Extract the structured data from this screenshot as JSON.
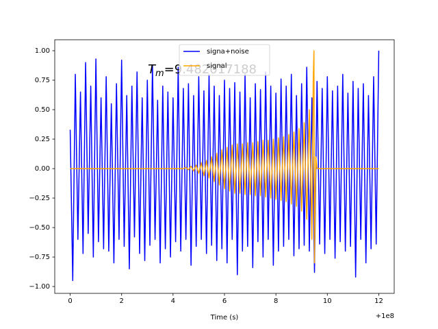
{
  "chart_data": {
    "type": "line",
    "xlabel": "Time (s)",
    "x_offset_label": "+1e8",
    "annotation": {
      "symbol": "T",
      "subscript": "m",
      "text": "=9.482017188"
    },
    "xlim": [
      -0.6,
      12.6
    ],
    "xticks": [
      0,
      2,
      4,
      6,
      8,
      10,
      12
    ],
    "ylim": [
      -1.058,
      1.093
    ],
    "yticks": [
      {
        "value": -1,
        "label": "−1.00"
      },
      {
        "value": -0.75,
        "label": "−0.75"
      },
      {
        "value": -0.5,
        "label": "−0.50"
      },
      {
        "value": -0.25,
        "label": "−0.25"
      },
      {
        "value": 0,
        "label": "0.00"
      },
      {
        "value": 0.25,
        "label": "0.25"
      },
      {
        "value": 0.5,
        "label": "0.50"
      },
      {
        "value": 0.75,
        "label": "0.75"
      },
      {
        "value": 1,
        "label": "1.00"
      }
    ],
    "legend": "upper center",
    "series": [
      {
        "name": "signa+noise",
        "color": "#0000ff",
        "x": [
          0,
          0.1,
          0.2,
          0.3,
          0.4,
          0.5,
          0.6,
          0.7,
          0.8,
          0.9,
          1,
          1.1,
          1.2,
          1.3,
          1.4,
          1.5,
          1.6,
          1.7,
          1.8,
          1.9,
          2,
          2.1,
          2.2,
          2.3,
          2.4,
          2.5,
          2.6,
          2.7,
          2.8,
          2.9,
          3,
          3.1,
          3.2,
          3.3,
          3.4,
          3.5,
          3.6,
          3.7,
          3.8,
          3.9,
          4,
          4.1,
          4.2,
          4.3,
          4.4,
          4.5,
          4.6,
          4.7,
          4.8,
          4.9,
          5,
          5.1,
          5.2,
          5.3,
          5.4,
          5.5,
          5.6,
          5.7,
          5.8,
          5.9,
          6,
          6.1,
          6.2,
          6.3,
          6.4,
          6.5,
          6.6,
          6.7,
          6.8,
          6.9,
          7,
          7.1,
          7.2,
          7.3,
          7.4,
          7.5,
          7.6,
          7.7,
          7.8,
          7.9,
          8,
          8.1,
          8.2,
          8.3,
          8.4,
          8.5,
          8.6,
          8.7,
          8.8,
          8.9,
          9,
          9.1,
          9.2,
          9.3,
          9.4,
          9.5,
          9.6,
          9.7,
          9.8,
          9.9,
          10,
          10.1,
          10.2,
          10.3,
          10.4,
          10.5,
          10.6,
          10.7,
          10.8,
          10.9,
          11,
          11.1,
          11.2,
          11.3,
          11.4,
          11.5,
          11.6,
          11.7,
          11.8,
          11.9,
          12
        ],
        "values": [
          0.33,
          -0.95,
          0.8,
          -0.6,
          0.65,
          -0.72,
          0.9,
          -0.55,
          0.7,
          -0.75,
          0.93,
          -0.62,
          0.6,
          -0.68,
          0.78,
          -0.7,
          0.55,
          -0.8,
          0.72,
          -0.6,
          0.92,
          -0.66,
          0.62,
          -0.85,
          0.7,
          -0.58,
          0.82,
          -0.72,
          0.6,
          -0.78,
          0.75,
          -0.65,
          0.88,
          -0.6,
          0.58,
          -0.8,
          0.7,
          -0.68,
          0.65,
          -0.75,
          0.6,
          -0.62,
          0.86,
          -0.7,
          0.68,
          -0.6,
          0.72,
          -0.82,
          0.62,
          -0.66,
          0.78,
          -0.6,
          0.66,
          -0.72,
          0.8,
          -0.65,
          0.7,
          -0.78,
          0.62,
          -0.68,
          0.75,
          -0.8,
          0.68,
          -0.6,
          0.73,
          -0.9,
          0.65,
          -0.7,
          0.8,
          -0.66,
          0.6,
          -0.84,
          0.72,
          -0.62,
          0.67,
          -0.75,
          0.82,
          -0.6,
          0.7,
          -0.82,
          0.64,
          -0.7,
          0.76,
          -0.66,
          0.7,
          -0.6,
          0.8,
          -0.74,
          0.62,
          -0.68,
          0.72,
          -0.65,
          0.86,
          -0.7,
          0.6,
          -0.88,
          0.74,
          -0.64,
          0.68,
          -0.72,
          0.78,
          -0.6,
          0.66,
          -0.76,
          0.7,
          -0.62,
          0.8,
          -0.7,
          0.64,
          -0.66,
          0.74,
          -0.92,
          0.68,
          -0.6,
          0.72,
          -0.8,
          0.62,
          -0.68,
          0.78,
          -0.64,
          1.0
        ]
      },
      {
        "name": "signal",
        "color": "#ffa500",
        "x": [
          0,
          4.4,
          4.5,
          4.6,
          4.7,
          4.8,
          4.9,
          5,
          5.1,
          5.2,
          5.3,
          5.4,
          5.5,
          5.6,
          5.7,
          5.8,
          5.9,
          6,
          6.1,
          6.2,
          6.3,
          6.4,
          6.5,
          6.6,
          6.7,
          6.8,
          6.9,
          7,
          7.1,
          7.2,
          7.3,
          7.4,
          7.5,
          7.6,
          7.7,
          7.8,
          7.9,
          8,
          8.1,
          8.2,
          8.3,
          8.4,
          8.5,
          8.6,
          8.7,
          8.8,
          8.9,
          9,
          9.1,
          9.2,
          9.3,
          9.4,
          9.45,
          9.48,
          9.5,
          9.55,
          9.6,
          12
        ],
        "values": [
          0,
          0,
          0.01,
          -0.01,
          0.02,
          -0.02,
          0.03,
          -0.04,
          0.05,
          -0.06,
          0.07,
          -0.08,
          0.1,
          -0.11,
          0.13,
          -0.14,
          0.16,
          -0.17,
          0.18,
          -0.19,
          0.2,
          -0.21,
          0.21,
          -0.21,
          0.21,
          -0.22,
          0.22,
          -0.22,
          0.22,
          -0.23,
          0.23,
          -0.23,
          0.24,
          -0.24,
          0.24,
          -0.25,
          0.25,
          -0.26,
          0.26,
          -0.27,
          0.27,
          -0.28,
          0.29,
          -0.3,
          0.31,
          -0.32,
          0.34,
          -0.36,
          0.39,
          -0.43,
          0.5,
          -0.6,
          0.75,
          1.0,
          -0.8,
          0.1,
          0,
          0
        ]
      }
    ]
  }
}
